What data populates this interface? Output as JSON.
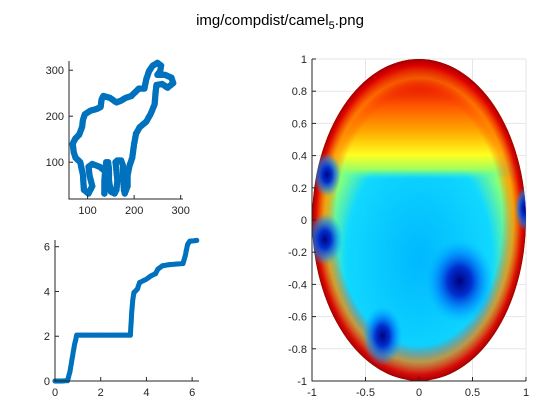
{
  "figure": {
    "title_main": "img/compdist/camel",
    "title_sub": "5",
    "title_ext": ".png"
  },
  "chart_data": [
    {
      "type": "scatter",
      "panel": "top-left",
      "title": "",
      "xlabel": "",
      "ylabel": "",
      "xlim": [
        60,
        305
      ],
      "ylim": [
        20,
        320
      ],
      "xticks": [
        100,
        200,
        300
      ],
      "yticks": [
        100,
        200,
        300
      ],
      "marker_color": "#0072BD",
      "outline": [
        [
          136,
          32
        ],
        [
          140,
          60
        ],
        [
          138,
          80
        ],
        [
          126,
          90
        ],
        [
          110,
          96
        ],
        [
          102,
          90
        ],
        [
          104,
          72
        ],
        [
          110,
          48
        ],
        [
          102,
          32
        ],
        [
          92,
          40
        ],
        [
          90,
          72
        ],
        [
          84,
          100
        ],
        [
          74,
          110
        ],
        [
          70,
          122
        ],
        [
          68,
          140
        ],
        [
          74,
          152
        ],
        [
          82,
          160
        ],
        [
          88,
          176
        ],
        [
          90,
          192
        ],
        [
          94,
          204
        ],
        [
          106,
          212
        ],
        [
          120,
          216
        ],
        [
          128,
          220
        ],
        [
          130,
          236
        ],
        [
          134,
          244
        ],
        [
          148,
          240
        ],
        [
          162,
          230
        ],
        [
          172,
          234
        ],
        [
          182,
          240
        ],
        [
          194,
          244
        ],
        [
          210,
          260
        ],
        [
          222,
          260
        ],
        [
          226,
          280
        ],
        [
          232,
          298
        ],
        [
          240,
          310
        ],
        [
          250,
          316
        ],
        [
          258,
          310
        ],
        [
          256,
          298
        ],
        [
          250,
          290
        ],
        [
          266,
          290
        ],
        [
          280,
          284
        ],
        [
          284,
          272
        ],
        [
          272,
          262
        ],
        [
          260,
          270
        ],
        [
          248,
          268
        ],
        [
          246,
          250
        ],
        [
          244,
          226
        ],
        [
          236,
          206
        ],
        [
          226,
          188
        ],
        [
          212,
          176
        ],
        [
          204,
          162
        ],
        [
          200,
          140
        ],
        [
          196,
          110
        ],
        [
          190,
          92
        ],
        [
          186,
          72
        ],
        [
          186,
          48
        ],
        [
          180,
          32
        ],
        [
          178,
          40
        ],
        [
          176,
          70
        ],
        [
          176,
          92
        ],
        [
          172,
          104
        ],
        [
          164,
          104
        ],
        [
          160,
          100
        ],
        [
          162,
          80
        ],
        [
          164,
          60
        ],
        [
          162,
          40
        ],
        [
          158,
          32
        ],
        [
          150,
          36
        ],
        [
          146,
          60
        ],
        [
          146,
          84
        ],
        [
          144,
          100
        ],
        [
          140,
          100
        ],
        [
          138,
          82
        ],
        [
          136,
          60
        ],
        [
          136,
          32
        ]
      ]
    },
    {
      "type": "scatter",
      "panel": "bottom-left",
      "title": "",
      "xlabel": "",
      "ylabel": "",
      "xlim": [
        0,
        6.3
      ],
      "ylim": [
        0,
        6.3
      ],
      "xticks": [
        0,
        2,
        4,
        6
      ],
      "yticks": [
        0,
        2,
        4,
        6
      ],
      "marker_color": "#0072BD",
      "curve": [
        [
          0.0,
          0.0
        ],
        [
          0.3,
          0.0
        ],
        [
          0.55,
          0.02
        ],
        [
          0.65,
          0.4
        ],
        [
          0.75,
          1.0
        ],
        [
          0.85,
          1.6
        ],
        [
          0.95,
          2.05
        ],
        [
          1.5,
          2.05
        ],
        [
          2.2,
          2.05
        ],
        [
          3.0,
          2.05
        ],
        [
          3.3,
          2.05
        ],
        [
          3.35,
          3.0
        ],
        [
          3.4,
          3.6
        ],
        [
          3.45,
          3.95
        ],
        [
          3.6,
          4.1
        ],
        [
          3.7,
          4.4
        ],
        [
          4.0,
          4.55
        ],
        [
          4.2,
          4.7
        ],
        [
          4.4,
          4.8
        ],
        [
          4.5,
          5.0
        ],
        [
          4.7,
          5.15
        ],
        [
          5.0,
          5.2
        ],
        [
          5.6,
          5.25
        ],
        [
          5.7,
          5.6
        ],
        [
          5.8,
          6.1
        ],
        [
          5.9,
          6.25
        ],
        [
          6.2,
          6.28
        ]
      ]
    },
    {
      "type": "heatmap",
      "panel": "right",
      "title": "",
      "xlabel": "",
      "ylabel": "",
      "xlim": [
        -1,
        1
      ],
      "ylim": [
        -1,
        1
      ],
      "xticks": [
        -1,
        -0.5,
        0,
        0.5,
        1
      ],
      "xticklabels": [
        "-1",
        "-0.5",
        "0",
        "0.5",
        "1"
      ],
      "yticks": [
        1,
        0.8,
        0.6,
        0.4,
        0.2,
        0,
        -0.2,
        -0.4,
        -0.6,
        -0.8,
        -1
      ],
      "yticklabels": [
        "1",
        "0.8",
        "0.6",
        "0.4",
        "0.2",
        "0",
        "-0.2",
        "-0.4",
        "-0.6",
        "-0.8",
        "-1"
      ],
      "grid": true,
      "colormap": "jet",
      "domain_shape": "ellipse",
      "minima": [
        [
          -0.86,
          0.28
        ],
        [
          -0.88,
          -0.12
        ],
        [
          0.38,
          -0.38
        ],
        [
          -0.34,
          -0.72
        ],
        [
          0.99,
          0.07
        ]
      ]
    }
  ]
}
